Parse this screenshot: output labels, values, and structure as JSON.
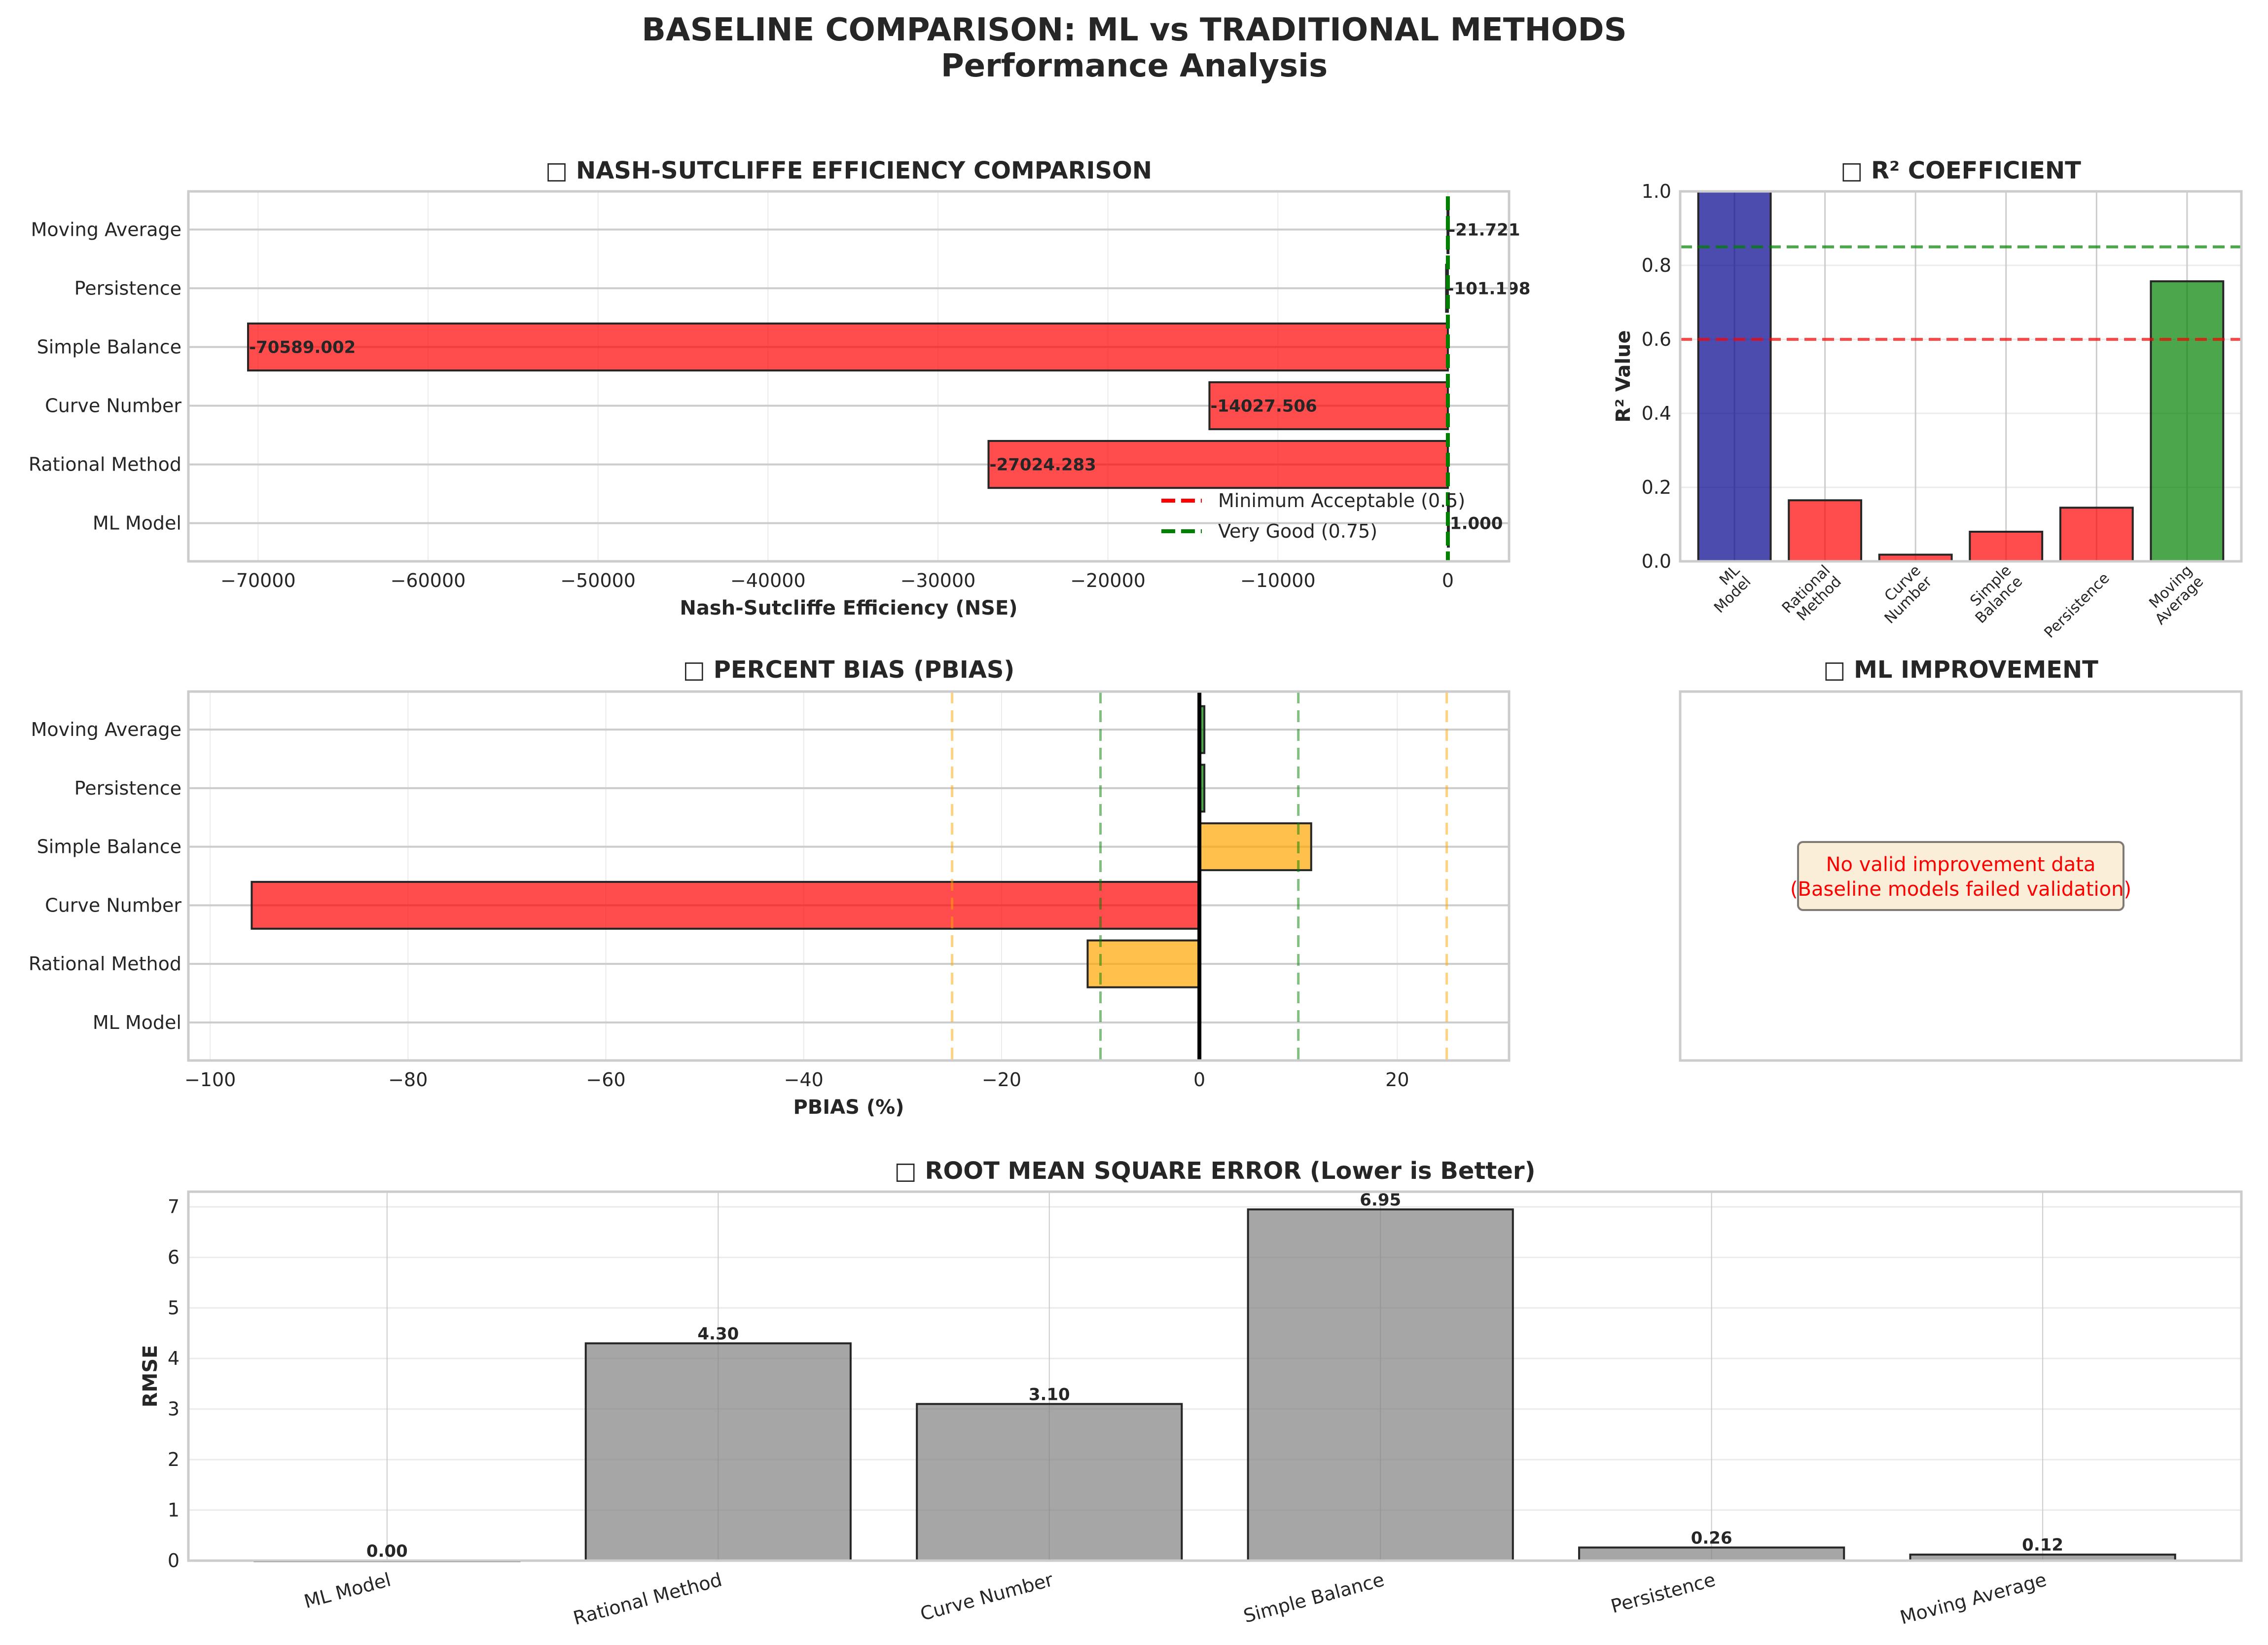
{
  "figure": {
    "title_line1": "BASELINE COMPARISON: ML vs TRADITIONAL METHODS",
    "title_line2": "Performance Analysis",
    "colors": {
      "red": "#ff0000",
      "orange": "#ffa500",
      "green": "#008000",
      "navy": "#00008b",
      "gray": "#808080",
      "edge": "#262626"
    }
  },
  "chart_data": [
    {
      "id": "nse",
      "type": "bar",
      "orientation": "horizontal",
      "title": "□ NASH-SUTCLIFFE EFFICIENCY COMPARISON",
      "xlabel": "Nash-Sutcliffe Efficiency (NSE)",
      "ylabel": "",
      "categories": [
        "ML Model",
        "Rational Method",
        "Curve Number",
        "Simple Balance",
        "Persistence",
        "Moving Average"
      ],
      "values": [
        1.0,
        -27024.283,
        -14027.506,
        -70589.002,
        -101.198,
        -21.721
      ],
      "value_labels": [
        "1.000",
        "-27024.283",
        "-14027.506",
        "-70589.002",
        "-101.198",
        "-21.721"
      ],
      "bar_colors": [
        "green",
        "red",
        "red",
        "red",
        "red",
        "red"
      ],
      "xlim": [
        -74100,
        3600
      ],
      "xticks": [
        -70000,
        -60000,
        -50000,
        -40000,
        -30000,
        -20000,
        -10000,
        0
      ],
      "xtick_labels": [
        "−70000",
        "−60000",
        "−50000",
        "−40000",
        "−30000",
        "−20000",
        "−10000",
        "0"
      ],
      "reference_lines": [
        {
          "value": 0.5,
          "label": "Minimum Acceptable (0.5)",
          "color": "red",
          "style": "dashed"
        },
        {
          "value": 0.75,
          "label": "Very Good (0.75)",
          "color": "green",
          "style": "dashed"
        }
      ],
      "legend": "lower-right",
      "grid": true
    },
    {
      "id": "r2",
      "type": "bar",
      "orientation": "vertical",
      "title": "□ R² COEFFICIENT",
      "xlabel": "",
      "ylabel": "R² Value",
      "categories": [
        "ML\nModel",
        "Rational\nMethod",
        "Curve\nNumber",
        "Simple\nBalance",
        "Persistence",
        "Moving\nAverage"
      ],
      "values": [
        1.0,
        0.165,
        0.018,
        0.08,
        0.145,
        0.757
      ],
      "bar_colors": [
        "navy",
        "red",
        "red",
        "red",
        "red",
        "green"
      ],
      "ylim": [
        0,
        1.0
      ],
      "yticks": [
        0.0,
        0.2,
        0.4,
        0.6,
        0.8,
        1.0
      ],
      "ytick_labels": [
        "0.0",
        "0.2",
        "0.4",
        "0.6",
        "0.8",
        "1.0"
      ],
      "reference_lines": [
        {
          "value": 0.85,
          "color": "green",
          "style": "dashed"
        },
        {
          "value": 0.6,
          "color": "red",
          "style": "dashed"
        }
      ],
      "grid": true
    },
    {
      "id": "pbias",
      "type": "bar",
      "orientation": "horizontal",
      "title": "□ PERCENT BIAS (PBIAS)",
      "xlabel": "PBIAS (%)",
      "ylabel": "",
      "categories": [
        "ML Model",
        "Rational Method",
        "Curve Number",
        "Simple Balance",
        "Persistence",
        "Moving Average"
      ],
      "values": [
        0.0,
        -11.3,
        -95.8,
        11.3,
        0.5,
        0.5
      ],
      "bar_colors": [
        "green",
        "orange",
        "red",
        "orange",
        "green",
        "green"
      ],
      "xlim": [
        -102.2,
        31.3
      ],
      "xticks": [
        -100,
        -80,
        -60,
        -40,
        -20,
        0,
        20
      ],
      "xtick_labels": [
        "−100",
        "−80",
        "−60",
        "−40",
        "−20",
        "0",
        "20"
      ],
      "reference_lines": [
        {
          "value": 0,
          "color": "black",
          "style": "solid"
        },
        {
          "value": -10,
          "color": "green",
          "style": "dashed"
        },
        {
          "value": 10,
          "color": "green",
          "style": "dashed"
        },
        {
          "value": -25,
          "color": "orange",
          "style": "dashed"
        },
        {
          "value": 25,
          "color": "orange",
          "style": "dashed"
        }
      ],
      "grid": true
    },
    {
      "id": "improvement",
      "type": "table",
      "title": "□ ML IMPROVEMENT",
      "message_line1": "No valid improvement data",
      "message_line2": "(Baseline models failed validation)"
    },
    {
      "id": "rmse",
      "type": "bar",
      "orientation": "vertical",
      "title": "□ ROOT MEAN SQUARE ERROR (Lower is Better)",
      "xlabel": "",
      "ylabel": "RMSE",
      "categories": [
        "ML Model",
        "Rational Method",
        "Curve Number",
        "Simple Balance",
        "Persistence",
        "Moving Average"
      ],
      "values": [
        0.0,
        4.3,
        3.1,
        6.95,
        0.26,
        0.12
      ],
      "value_labels": [
        "0.00",
        "4.30",
        "3.10",
        "6.95",
        "0.26",
        "0.12"
      ],
      "bar_colors": [
        "gray",
        "gray",
        "gray",
        "gray",
        "gray",
        "gray"
      ],
      "ylim": [
        0,
        7.3
      ],
      "yticks": [
        0,
        1,
        2,
        3,
        4,
        5,
        6,
        7
      ],
      "ytick_labels": [
        "0",
        "1",
        "2",
        "3",
        "4",
        "5",
        "6",
        "7"
      ],
      "grid": true
    }
  ]
}
